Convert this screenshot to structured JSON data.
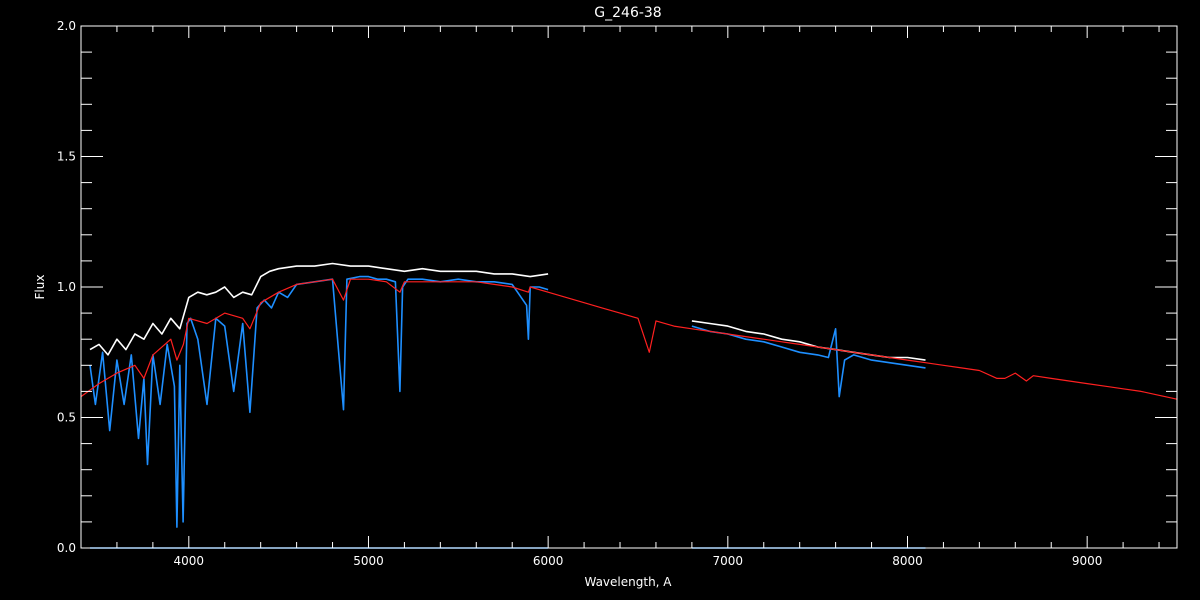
{
  "chart_data": {
    "type": "line",
    "title": "G_246-38",
    "xlabel": "Wavelength, A",
    "ylabel": "Flux",
    "xlim": [
      3400,
      9500
    ],
    "ylim": [
      0.0,
      2.0
    ],
    "xticks": [
      4000,
      5000,
      6000,
      7000,
      8000,
      9000
    ],
    "yticks": [
      0.0,
      0.5,
      1.0,
      1.5,
      2.0
    ],
    "ytick_labels": [
      "0.0",
      "0.5",
      "1.0",
      "1.5",
      "2.0"
    ],
    "grid": false,
    "legend": "none",
    "colors": {
      "background": "#000000",
      "axes": "#ffffff",
      "observed": "#ffffff",
      "calibrated": "#1e8fff",
      "model": "#ff2020"
    },
    "series": [
      {
        "key": "model",
        "x": [
          3400,
          3500,
          3600,
          3700,
          3750,
          3800,
          3900,
          3934,
          3970,
          4000,
          4101,
          4200,
          4300,
          4340,
          4400,
          4500,
          4600,
          4700,
          4800,
          4861,
          4900,
          5000,
          5100,
          5175,
          5200,
          5300,
          5400,
          5500,
          5600,
          5700,
          5800,
          5890,
          5900,
          6000,
          6100,
          6200,
          6300,
          6400,
          6500,
          6563,
          6600,
          6700,
          6800,
          6900,
          7000,
          7100,
          7200,
          7300,
          7400,
          7500,
          7600,
          7700,
          7800,
          7900,
          8000,
          8100,
          8200,
          8300,
          8400,
          8498,
          8542,
          8600,
          8662,
          8700,
          8800,
          8900,
          9000,
          9100,
          9200,
          9300,
          9400,
          9500
        ],
        "y": [
          0.58,
          0.63,
          0.67,
          0.7,
          0.65,
          0.74,
          0.8,
          0.72,
          0.78,
          0.88,
          0.86,
          0.9,
          0.88,
          0.84,
          0.94,
          0.98,
          1.01,
          1.02,
          1.03,
          0.95,
          1.03,
          1.03,
          1.02,
          0.98,
          1.02,
          1.02,
          1.02,
          1.02,
          1.02,
          1.01,
          1.0,
          0.98,
          1.0,
          0.98,
          0.96,
          0.94,
          0.92,
          0.9,
          0.88,
          0.75,
          0.87,
          0.85,
          0.84,
          0.83,
          0.82,
          0.81,
          0.8,
          0.79,
          0.78,
          0.77,
          0.76,
          0.75,
          0.74,
          0.73,
          0.72,
          0.71,
          0.7,
          0.69,
          0.68,
          0.65,
          0.65,
          0.67,
          0.64,
          0.66,
          0.65,
          0.64,
          0.63,
          0.62,
          0.61,
          0.6,
          0.585,
          0.57
        ]
      },
      {
        "key": "observed",
        "x": [
          3450,
          3500,
          3550,
          3600,
          3650,
          3700,
          3750,
          3800,
          3850,
          3900,
          3950,
          4000,
          4050,
          4100,
          4150,
          4200,
          4250,
          4300,
          4350,
          4400,
          4450,
          4500,
          4600,
          4700,
          4800,
          4900,
          5000,
          5100,
          5200,
          5300,
          5400,
          5500,
          5600,
          5700,
          5800,
          5900,
          6000
        ],
        "y": [
          0.76,
          0.78,
          0.74,
          0.8,
          0.76,
          0.82,
          0.8,
          0.86,
          0.82,
          0.88,
          0.84,
          0.96,
          0.98,
          0.97,
          0.98,
          1.0,
          0.96,
          0.98,
          0.97,
          1.04,
          1.06,
          1.07,
          1.08,
          1.08,
          1.09,
          1.08,
          1.08,
          1.07,
          1.06,
          1.07,
          1.06,
          1.06,
          1.06,
          1.05,
          1.05,
          1.04,
          1.05
        ]
      },
      {
        "key": "observed",
        "x": [
          6800,
          6900,
          7000,
          7100,
          7200,
          7300,
          7400,
          7500,
          7600,
          7700,
          7800,
          7900,
          8000,
          8100
        ],
        "y": [
          0.87,
          0.86,
          0.85,
          0.83,
          0.82,
          0.8,
          0.79,
          0.77,
          0.76,
          0.75,
          0.74,
          0.73,
          0.73,
          0.72
        ]
      },
      {
        "key": "calibrated",
        "x": [
          3450,
          3480,
          3520,
          3560,
          3600,
          3640,
          3680,
          3720,
          3750,
          3770,
          3800,
          3840,
          3880,
          3920,
          3934,
          3950,
          3968,
          3990,
          4010,
          4050,
          4101,
          4150,
          4200,
          4250,
          4300,
          4340,
          4380,
          4420,
          4460,
          4500,
          4550,
          4600,
          4700,
          4800,
          4861,
          4880,
          4950,
          5000,
          5050,
          5100,
          5150,
          5175,
          5190,
          5220,
          5300,
          5400,
          5500,
          5600,
          5700,
          5800,
          5880,
          5890,
          5900,
          5950,
          6000
        ],
        "y": [
          0.7,
          0.55,
          0.75,
          0.45,
          0.72,
          0.55,
          0.74,
          0.42,
          0.65,
          0.32,
          0.74,
          0.55,
          0.78,
          0.62,
          0.08,
          0.7,
          0.1,
          0.86,
          0.88,
          0.8,
          0.55,
          0.88,
          0.85,
          0.6,
          0.86,
          0.52,
          0.92,
          0.95,
          0.92,
          0.98,
          0.96,
          1.01,
          1.02,
          1.03,
          0.53,
          1.03,
          1.04,
          1.04,
          1.03,
          1.03,
          1.02,
          0.6,
          1.0,
          1.03,
          1.03,
          1.02,
          1.03,
          1.02,
          1.02,
          1.01,
          0.93,
          0.8,
          1.0,
          1.0,
          0.99
        ]
      },
      {
        "key": "calibrated",
        "x": [
          6800,
          6900,
          7000,
          7100,
          7200,
          7300,
          7400,
          7500,
          7560,
          7600,
          7620,
          7650,
          7700,
          7800,
          7900,
          8000,
          8100
        ],
        "y": [
          0.85,
          0.83,
          0.82,
          0.8,
          0.79,
          0.77,
          0.75,
          0.74,
          0.73,
          0.84,
          0.58,
          0.72,
          0.74,
          0.72,
          0.71,
          0.7,
          0.69
        ]
      },
      {
        "key": "calibrated",
        "x": [
          3450,
          6000
        ],
        "y": [
          0.0,
          0.0
        ]
      },
      {
        "key": "calibrated",
        "x": [
          6800,
          8100
        ],
        "y": [
          0.0,
          0.0
        ]
      }
    ]
  }
}
